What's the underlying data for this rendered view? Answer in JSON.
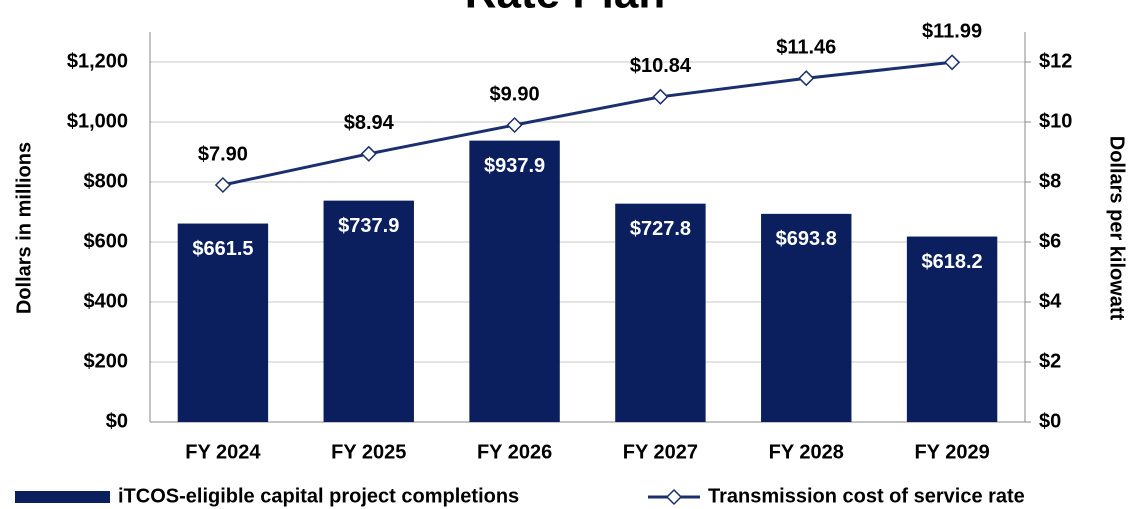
{
  "chart_data": {
    "type": "bar",
    "title": "Rate Plan",
    "y_label": "Dollars in millions",
    "y2_label": "Dollars per kilowatt",
    "categories": [
      "FY 2024",
      "FY 2025",
      "FY 2026",
      "FY 2027",
      "FY 2028",
      "FY 2029"
    ],
    "series": [
      {
        "name": "iTCOS-eligible capital project completions",
        "type": "bar",
        "color": "#0b1f5e",
        "values": [
          661.5,
          737.9,
          937.9,
          727.8,
          693.8,
          618.2
        ],
        "value_labels": [
          "$661.5",
          "$737.9",
          "$937.9",
          "$727.8",
          "$693.8",
          "$618.2"
        ]
      },
      {
        "name": "Transmission cost of service rate",
        "type": "line",
        "axis": "y2",
        "color": "#1b2f6e",
        "values": [
          7.9,
          8.94,
          9.9,
          10.84,
          11.46,
          11.99
        ],
        "value_labels": [
          "$7.90",
          "$8.94",
          "$9.90",
          "$10.84",
          "$11.46",
          "$11.99"
        ]
      }
    ],
    "ylim": [
      0,
      1300
    ],
    "yticks": [
      {
        "value": 0,
        "label": "$0"
      },
      {
        "value": 200,
        "label": "$200"
      },
      {
        "value": 400,
        "label": "$400"
      },
      {
        "value": 600,
        "label": "$600"
      },
      {
        "value": 800,
        "label": "$800"
      },
      {
        "value": 1000,
        "label": "$1,000"
      },
      {
        "value": 1200,
        "label": "$1,200"
      }
    ],
    "y2lim": [
      0,
      13
    ],
    "y2ticks": [
      {
        "value": 0,
        "label": "$0"
      },
      {
        "value": 2,
        "label": "$2"
      },
      {
        "value": 4,
        "label": "$4"
      },
      {
        "value": 6,
        "label": "$6"
      },
      {
        "value": 8,
        "label": "$8"
      },
      {
        "value": 10,
        "label": "$10"
      },
      {
        "value": 12,
        "label": "$12"
      }
    ],
    "grid": true,
    "legend": "bottom"
  }
}
